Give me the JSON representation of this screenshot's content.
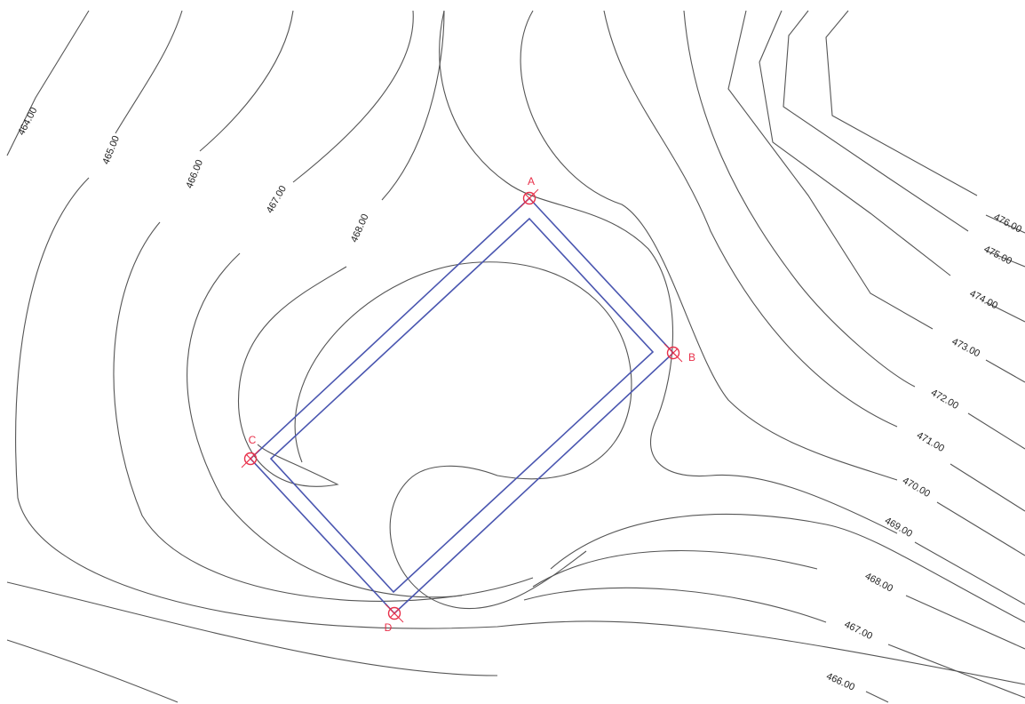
{
  "contour_labels": [
    "464.00",
    "465.00",
    "466.00",
    "467.00",
    "468.00",
    "476.00",
    "475.00",
    "474.00",
    "473.00",
    "472.00",
    "471.00",
    "470.00",
    "469.00",
    "468.00",
    "467.00",
    "466.00"
  ],
  "points": [
    "A",
    "B",
    "C",
    "D"
  ],
  "colors": {
    "contour": "#555555",
    "pad": "#4a56b0",
    "marker": "#e8304a"
  }
}
